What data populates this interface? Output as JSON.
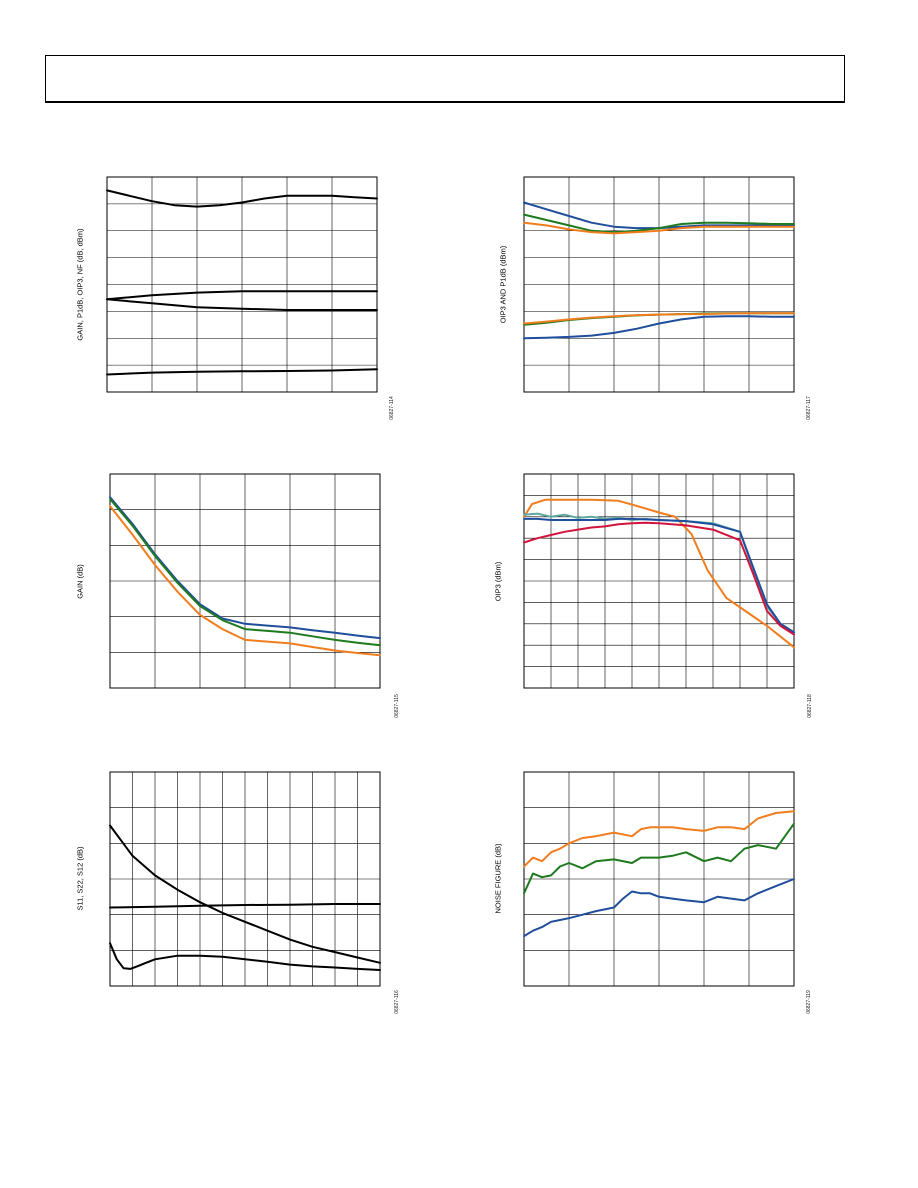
{
  "header": {
    "text": ""
  },
  "colors": {
    "blue": "#1f4e9c",
    "green": "#1e7a1e",
    "orange": "#f07d1e",
    "red": "#d2143c",
    "teal": "#5fa8a0",
    "black": "#000000"
  },
  "charts": [
    {
      "id": "c1",
      "ylabel": "GAIN, P1dB, OIP3, NF (dB, dBm)",
      "figid": "06827-114",
      "chart_data": {
        "type": "line",
        "grid": true,
        "xlim": [
          0,
          6
        ],
        "ylim": [
          0,
          8
        ],
        "series": [
          {
            "color": "#000000",
            "x": [
              0,
              0.5,
              1,
              1.5,
              2,
              2.5,
              3,
              3.5,
              4,
              4.5,
              5,
              5.5,
              6
            ],
            "y": [
              7.5,
              7.3,
              7.1,
              6.95,
              6.9,
              6.95,
              7.05,
              7.2,
              7.3,
              7.3,
              7.3,
              7.25,
              7.2
            ]
          },
          {
            "color": "#000000",
            "x": [
              0,
              1,
              2,
              3,
              4,
              5,
              6
            ],
            "y": [
              3.45,
              3.6,
              3.7,
              3.75,
              3.75,
              3.75,
              3.75
            ]
          },
          {
            "color": "#000000",
            "x": [
              0,
              1,
              2,
              3,
              4,
              5,
              6
            ],
            "y": [
              3.45,
              3.3,
              3.15,
              3.1,
              3.05,
              3.05,
              3.05
            ]
          },
          {
            "color": "#000000",
            "x": [
              0,
              1,
              2,
              3,
              4,
              5,
              6
            ],
            "y": [
              0.65,
              0.72,
              0.75,
              0.77,
              0.78,
              0.8,
              0.85
            ]
          }
        ]
      }
    },
    {
      "id": "c2",
      "ylabel": "OIP3 AND P1dB (dBm)",
      "figid": "06827-117",
      "chart_data": {
        "type": "line",
        "grid": true,
        "xlim": [
          0,
          6
        ],
        "ylim": [
          0,
          8
        ],
        "series": [
          {
            "color": "#1f4e9c",
            "x": [
              0,
              0.5,
              1,
              1.5,
              2,
              2.5,
              3,
              3.5,
              4,
              4.5,
              5,
              5.5,
              6
            ],
            "y": [
              7.05,
              6.8,
              6.55,
              6.3,
              6.15,
              6.1,
              6.1,
              6.15,
              6.2,
              6.2,
              6.2,
              6.2,
              6.2
            ]
          },
          {
            "color": "#1e7a1e",
            "x": [
              0,
              0.5,
              1,
              1.5,
              2,
              2.5,
              3,
              3.5,
              4,
              4.5,
              5,
              5.5,
              6
            ],
            "y": [
              6.6,
              6.4,
              6.2,
              6.0,
              5.95,
              6.0,
              6.1,
              6.25,
              6.3,
              6.3,
              6.28,
              6.25,
              6.25
            ]
          },
          {
            "color": "#f07d1e",
            "x": [
              0,
              0.5,
              1,
              1.5,
              2,
              2.5,
              3,
              3.5,
              4,
              4.5,
              5,
              5.5,
              6
            ],
            "y": [
              6.3,
              6.2,
              6.05,
              5.95,
              5.9,
              5.95,
              6.0,
              6.1,
              6.15,
              6.15,
              6.15,
              6.15,
              6.15
            ]
          },
          {
            "color": "#1e7a1e",
            "x": [
              0,
              0.5,
              1,
              1.5,
              2,
              2.5,
              3,
              3.5,
              4,
              4.5,
              5,
              5.5,
              6
            ],
            "y": [
              2.5,
              2.58,
              2.68,
              2.75,
              2.8,
              2.85,
              2.88,
              2.9,
              2.92,
              2.93,
              2.93,
              2.93,
              2.93
            ]
          },
          {
            "color": "#f07d1e",
            "x": [
              0,
              0.5,
              1,
              1.5,
              2,
              2.5,
              3,
              3.5,
              4,
              4.5,
              5,
              5.5,
              6
            ],
            "y": [
              2.55,
              2.62,
              2.7,
              2.77,
              2.82,
              2.86,
              2.88,
              2.9,
              2.9,
              2.92,
              2.93,
              2.93,
              2.93
            ]
          },
          {
            "color": "#1f4e9c",
            "x": [
              0,
              0.5,
              1,
              1.5,
              2,
              2.5,
              3,
              3.5,
              4,
              4.5,
              5,
              5.5,
              6
            ],
            "y": [
              2.0,
              2.02,
              2.05,
              2.1,
              2.2,
              2.35,
              2.55,
              2.7,
              2.8,
              2.82,
              2.82,
              2.8,
              2.8
            ]
          }
        ]
      }
    },
    {
      "id": "c3",
      "ylabel": "GAIN (dB)",
      "figid": "06827-115",
      "chart_data": {
        "type": "line",
        "grid": true,
        "xlim": [
          0,
          6
        ],
        "ylim": [
          0,
          6
        ],
        "series": [
          {
            "color": "#1f4e9c",
            "x": [
              0,
              0.5,
              1,
              1.5,
              2,
              2.5,
              3,
              3.5,
              4,
              4.5,
              5,
              5.5,
              6
            ],
            "y": [
              5.35,
              4.6,
              3.75,
              3.0,
              2.35,
              1.95,
              1.8,
              1.75,
              1.7,
              1.62,
              1.55,
              1.47,
              1.4
            ]
          },
          {
            "color": "#1e7a1e",
            "x": [
              0,
              0.5,
              1,
              1.5,
              2,
              2.5,
              3,
              3.5,
              4,
              4.5,
              5,
              5.5,
              6
            ],
            "y": [
              5.3,
              4.55,
              3.7,
              2.95,
              2.3,
              1.9,
              1.65,
              1.6,
              1.55,
              1.45,
              1.35,
              1.27,
              1.2
            ]
          },
          {
            "color": "#f07d1e",
            "x": [
              0,
              0.5,
              1,
              1.5,
              2,
              2.5,
              3,
              3.5,
              4,
              4.5,
              5,
              5.5,
              6
            ],
            "y": [
              5.1,
              4.3,
              3.45,
              2.7,
              2.05,
              1.65,
              1.35,
              1.3,
              1.25,
              1.15,
              1.05,
              0.98,
              0.92
            ]
          }
        ]
      }
    },
    {
      "id": "c4",
      "ylabel": "OIP3 (dBm)",
      "figid": "06827-118",
      "chart_data": {
        "type": "line",
        "grid": true,
        "xlim": [
          0,
          10
        ],
        "ylim": [
          0,
          10
        ],
        "series": [
          {
            "color": "#f07d1e",
            "x": [
              0,
              0.3,
              0.8,
              1.5,
              2.5,
              3.5,
              4.2,
              5,
              5.6,
              6.2,
              6.8,
              7.5,
              8.2,
              9,
              10
            ],
            "y": [
              8.0,
              8.6,
              8.8,
              8.8,
              8.8,
              8.75,
              8.5,
              8.2,
              8.0,
              7.2,
              5.5,
              4.2,
              3.6,
              2.9,
              1.9
            ]
          },
          {
            "color": "#5fa8a0",
            "x": [
              0,
              0.5,
              1,
              1.5,
              2,
              2.5,
              3,
              3.5,
              4,
              4.5,
              5,
              6,
              7,
              8,
              8.5,
              9,
              9.5,
              10
            ],
            "y": [
              8.1,
              8.15,
              8.0,
              8.1,
              7.95,
              8.0,
              7.9,
              7.95,
              7.85,
              7.9,
              7.85,
              7.8,
              7.7,
              7.3,
              5.5,
              3.8,
              3.0,
              2.6
            ]
          },
          {
            "color": "#1f4e9c",
            "x": [
              0,
              0.5,
              1,
              1.5,
              2,
              2.5,
              3,
              3.5,
              4,
              4.5,
              5,
              6,
              7,
              8,
              8.5,
              9,
              9.5,
              10
            ],
            "y": [
              7.9,
              7.9,
              7.85,
              7.85,
              7.85,
              7.85,
              7.85,
              7.9,
              7.9,
              7.88,
              7.85,
              7.8,
              7.65,
              7.3,
              5.6,
              3.9,
              3.0,
              2.6
            ]
          },
          {
            "color": "#d2143c",
            "x": [
              0,
              0.5,
              1,
              1.5,
              2,
              2.5,
              3,
              3.5,
              4,
              4.5,
              5,
              6,
              7,
              8,
              8.5,
              9,
              9.5,
              10
            ],
            "y": [
              6.8,
              7.0,
              7.15,
              7.3,
              7.4,
              7.5,
              7.55,
              7.65,
              7.7,
              7.72,
              7.7,
              7.6,
              7.4,
              6.9,
              5.3,
              3.6,
              2.9,
              2.5
            ]
          }
        ]
      }
    },
    {
      "id": "c5",
      "ylabel": "S11, S22, S12 (dB)",
      "figid": "06827-116",
      "chart_data": {
        "type": "line",
        "grid": true,
        "xlim": [
          0,
          12
        ],
        "ylim": [
          0,
          6
        ],
        "series": [
          {
            "color": "#000000",
            "x": [
              0,
              1,
              2,
              3,
              4,
              5,
              6,
              7,
              8,
              9,
              10,
              11,
              12
            ],
            "y": [
              4.5,
              3.65,
              3.1,
              2.7,
              2.35,
              2.05,
              1.8,
              1.55,
              1.3,
              1.1,
              0.95,
              0.8,
              0.65
            ]
          },
          {
            "color": "#000000",
            "x": [
              0,
              2,
              4,
              6,
              8,
              10,
              12
            ],
            "y": [
              2.2,
              2.22,
              2.25,
              2.27,
              2.28,
              2.3,
              2.3
            ]
          },
          {
            "color": "#000000",
            "x": [
              0,
              0.3,
              0.6,
              0.9,
              1.2,
              1.6,
              2,
              3,
              4,
              5,
              6,
              7,
              8,
              9,
              10,
              11,
              12
            ],
            "y": [
              1.2,
              0.75,
              0.5,
              0.48,
              0.55,
              0.65,
              0.75,
              0.85,
              0.85,
              0.82,
              0.75,
              0.68,
              0.6,
              0.55,
              0.52,
              0.48,
              0.45
            ]
          }
        ]
      }
    },
    {
      "id": "c6",
      "ylabel": "NOISE FIGURE (dB)",
      "figid": "06827-119",
      "chart_data": {
        "type": "line",
        "grid": true,
        "xlim": [
          0,
          6
        ],
        "ylim": [
          0,
          6
        ],
        "series": [
          {
            "color": "#f07d1e",
            "x": [
              0,
              0.2,
              0.4,
              0.6,
              0.8,
              1,
              1.3,
              1.6,
              2,
              2.4,
              2.6,
              2.8,
              3,
              3.3,
              3.6,
              4,
              4.3,
              4.6,
              4.9,
              5.2,
              5.6,
              6
            ],
            "y": [
              3.35,
              3.6,
              3.5,
              3.75,
              3.85,
              4.0,
              4.15,
              4.2,
              4.3,
              4.2,
              4.4,
              4.45,
              4.45,
              4.45,
              4.4,
              4.35,
              4.45,
              4.45,
              4.4,
              4.7,
              4.85,
              4.9
            ]
          },
          {
            "color": "#1e7a1e",
            "x": [
              0,
              0.2,
              0.4,
              0.6,
              0.8,
              1,
              1.3,
              1.6,
              2,
              2.4,
              2.6,
              2.8,
              3,
              3.3,
              3.6,
              4,
              4.3,
              4.6,
              4.9,
              5.2,
              5.6,
              6
            ],
            "y": [
              2.6,
              3.15,
              3.05,
              3.1,
              3.35,
              3.45,
              3.3,
              3.5,
              3.55,
              3.45,
              3.6,
              3.6,
              3.6,
              3.65,
              3.75,
              3.5,
              3.6,
              3.5,
              3.85,
              3.95,
              3.85,
              4.55
            ]
          },
          {
            "color": "#1f4e9c",
            "x": [
              0,
              0.2,
              0.4,
              0.6,
              0.8,
              1,
              1.3,
              1.6,
              2,
              2.2,
              2.4,
              2.6,
              2.8,
              3,
              3.3,
              3.6,
              4,
              4.3,
              4.6,
              4.9,
              5.2,
              5.6,
              6
            ],
            "y": [
              1.4,
              1.55,
              1.65,
              1.8,
              1.85,
              1.9,
              2.0,
              2.1,
              2.2,
              2.45,
              2.65,
              2.6,
              2.6,
              2.5,
              2.45,
              2.4,
              2.35,
              2.5,
              2.45,
              2.4,
              2.6,
              2.8,
              3.0
            ]
          }
        ]
      }
    }
  ]
}
